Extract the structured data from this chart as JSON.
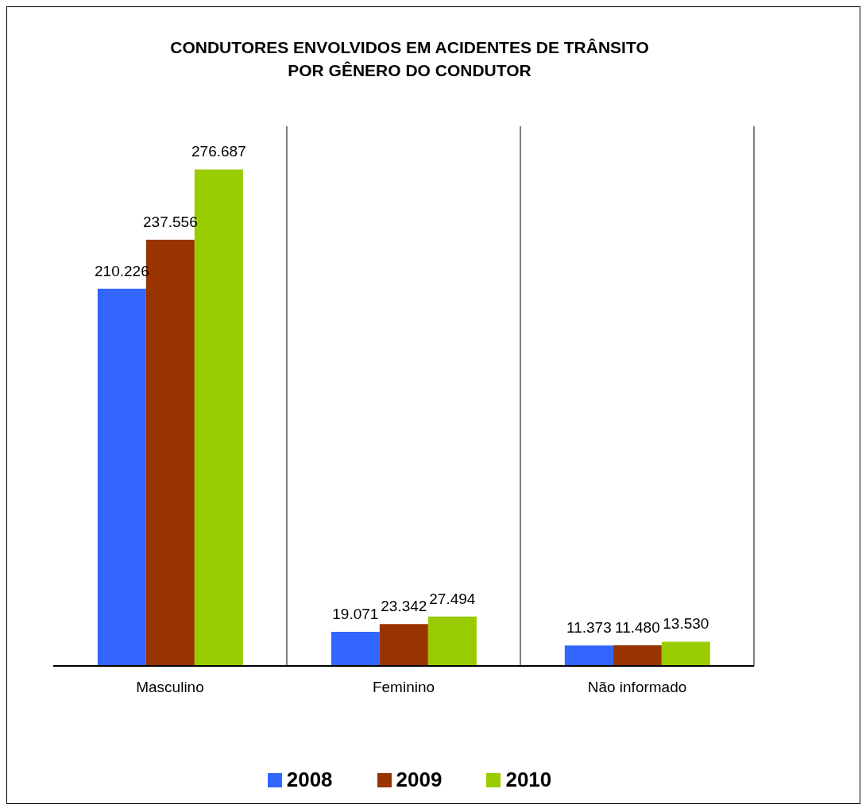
{
  "chart_data": {
    "type": "bar",
    "title": "CONDUTORES ENVOLVIDOS EM ACIDENTES DE TRÂNSITO\nPOR GÊNERO DO CONDUTOR",
    "categories": [
      "Masculino",
      "Feminino",
      "Não informado"
    ],
    "series": [
      {
        "name": "2008",
        "color": "#3366ff",
        "values": [
          210226,
          19071,
          11373
        ],
        "value_labels": [
          "210.226",
          "19.071",
          "11.373"
        ]
      },
      {
        "name": "2009",
        "color": "#993300",
        "values": [
          237556,
          23342,
          11480
        ],
        "value_labels": [
          "237.556",
          "23.342",
          "11.480"
        ]
      },
      {
        "name": "2010",
        "color": "#99cc00",
        "values": [
          276687,
          27494,
          13530
        ],
        "value_labels": [
          "276.687",
          "27.494",
          "13.530"
        ]
      }
    ],
    "grid": "x",
    "legend": "bottom"
  }
}
